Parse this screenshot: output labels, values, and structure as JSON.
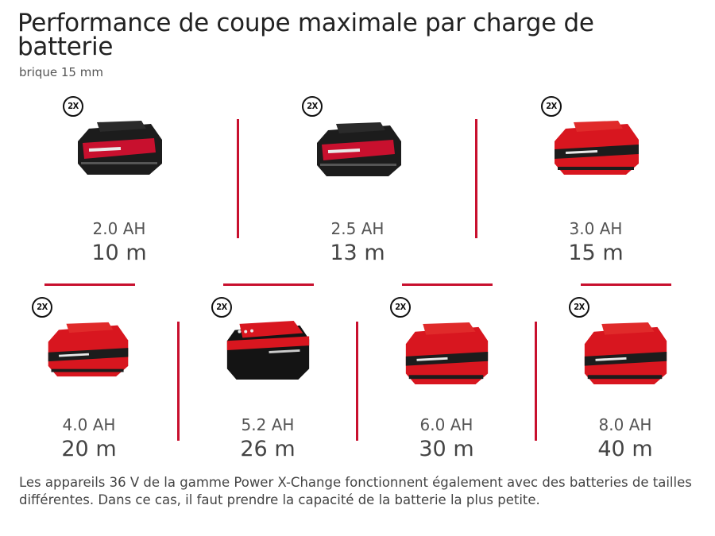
{
  "title": "Performance de coupe maximale par charge de batterie",
  "subtitle": "brique 15 mm",
  "colors": {
    "accent": "#c8102e",
    "battery_body": "#d8161f",
    "battery_dark": "#1c1c1c"
  },
  "badge_label": "2X",
  "batteries": [
    {
      "capacity": "2.0 AH",
      "distance": "10 m",
      "icon": "battery-pack-icon",
      "style": "dark"
    },
    {
      "capacity": "2.5 AH",
      "distance": "13 m",
      "icon": "battery-pack-icon",
      "style": "dark"
    },
    {
      "capacity": "3.0 AH",
      "distance": "15 m",
      "icon": "battery-pack-icon",
      "style": "red"
    },
    {
      "capacity": "4.0 AH",
      "distance": "20 m",
      "icon": "battery-pack-icon",
      "style": "red"
    },
    {
      "capacity": "5.2 AH",
      "distance": "26 m",
      "icon": "battery-pack-icon",
      "style": "black"
    },
    {
      "capacity": "6.0 AH",
      "distance": "30 m",
      "icon": "battery-pack-icon",
      "style": "red"
    },
    {
      "capacity": "8.0 AH",
      "distance": "40 m",
      "icon": "battery-pack-icon",
      "style": "red"
    }
  ],
  "footnote": "Les appareils 36 V de la gamme Power X-Change fonctionnent également avec des batteries de tailles différentes. Dans ce cas, il faut prendre la capacité de la batterie la plus petite."
}
